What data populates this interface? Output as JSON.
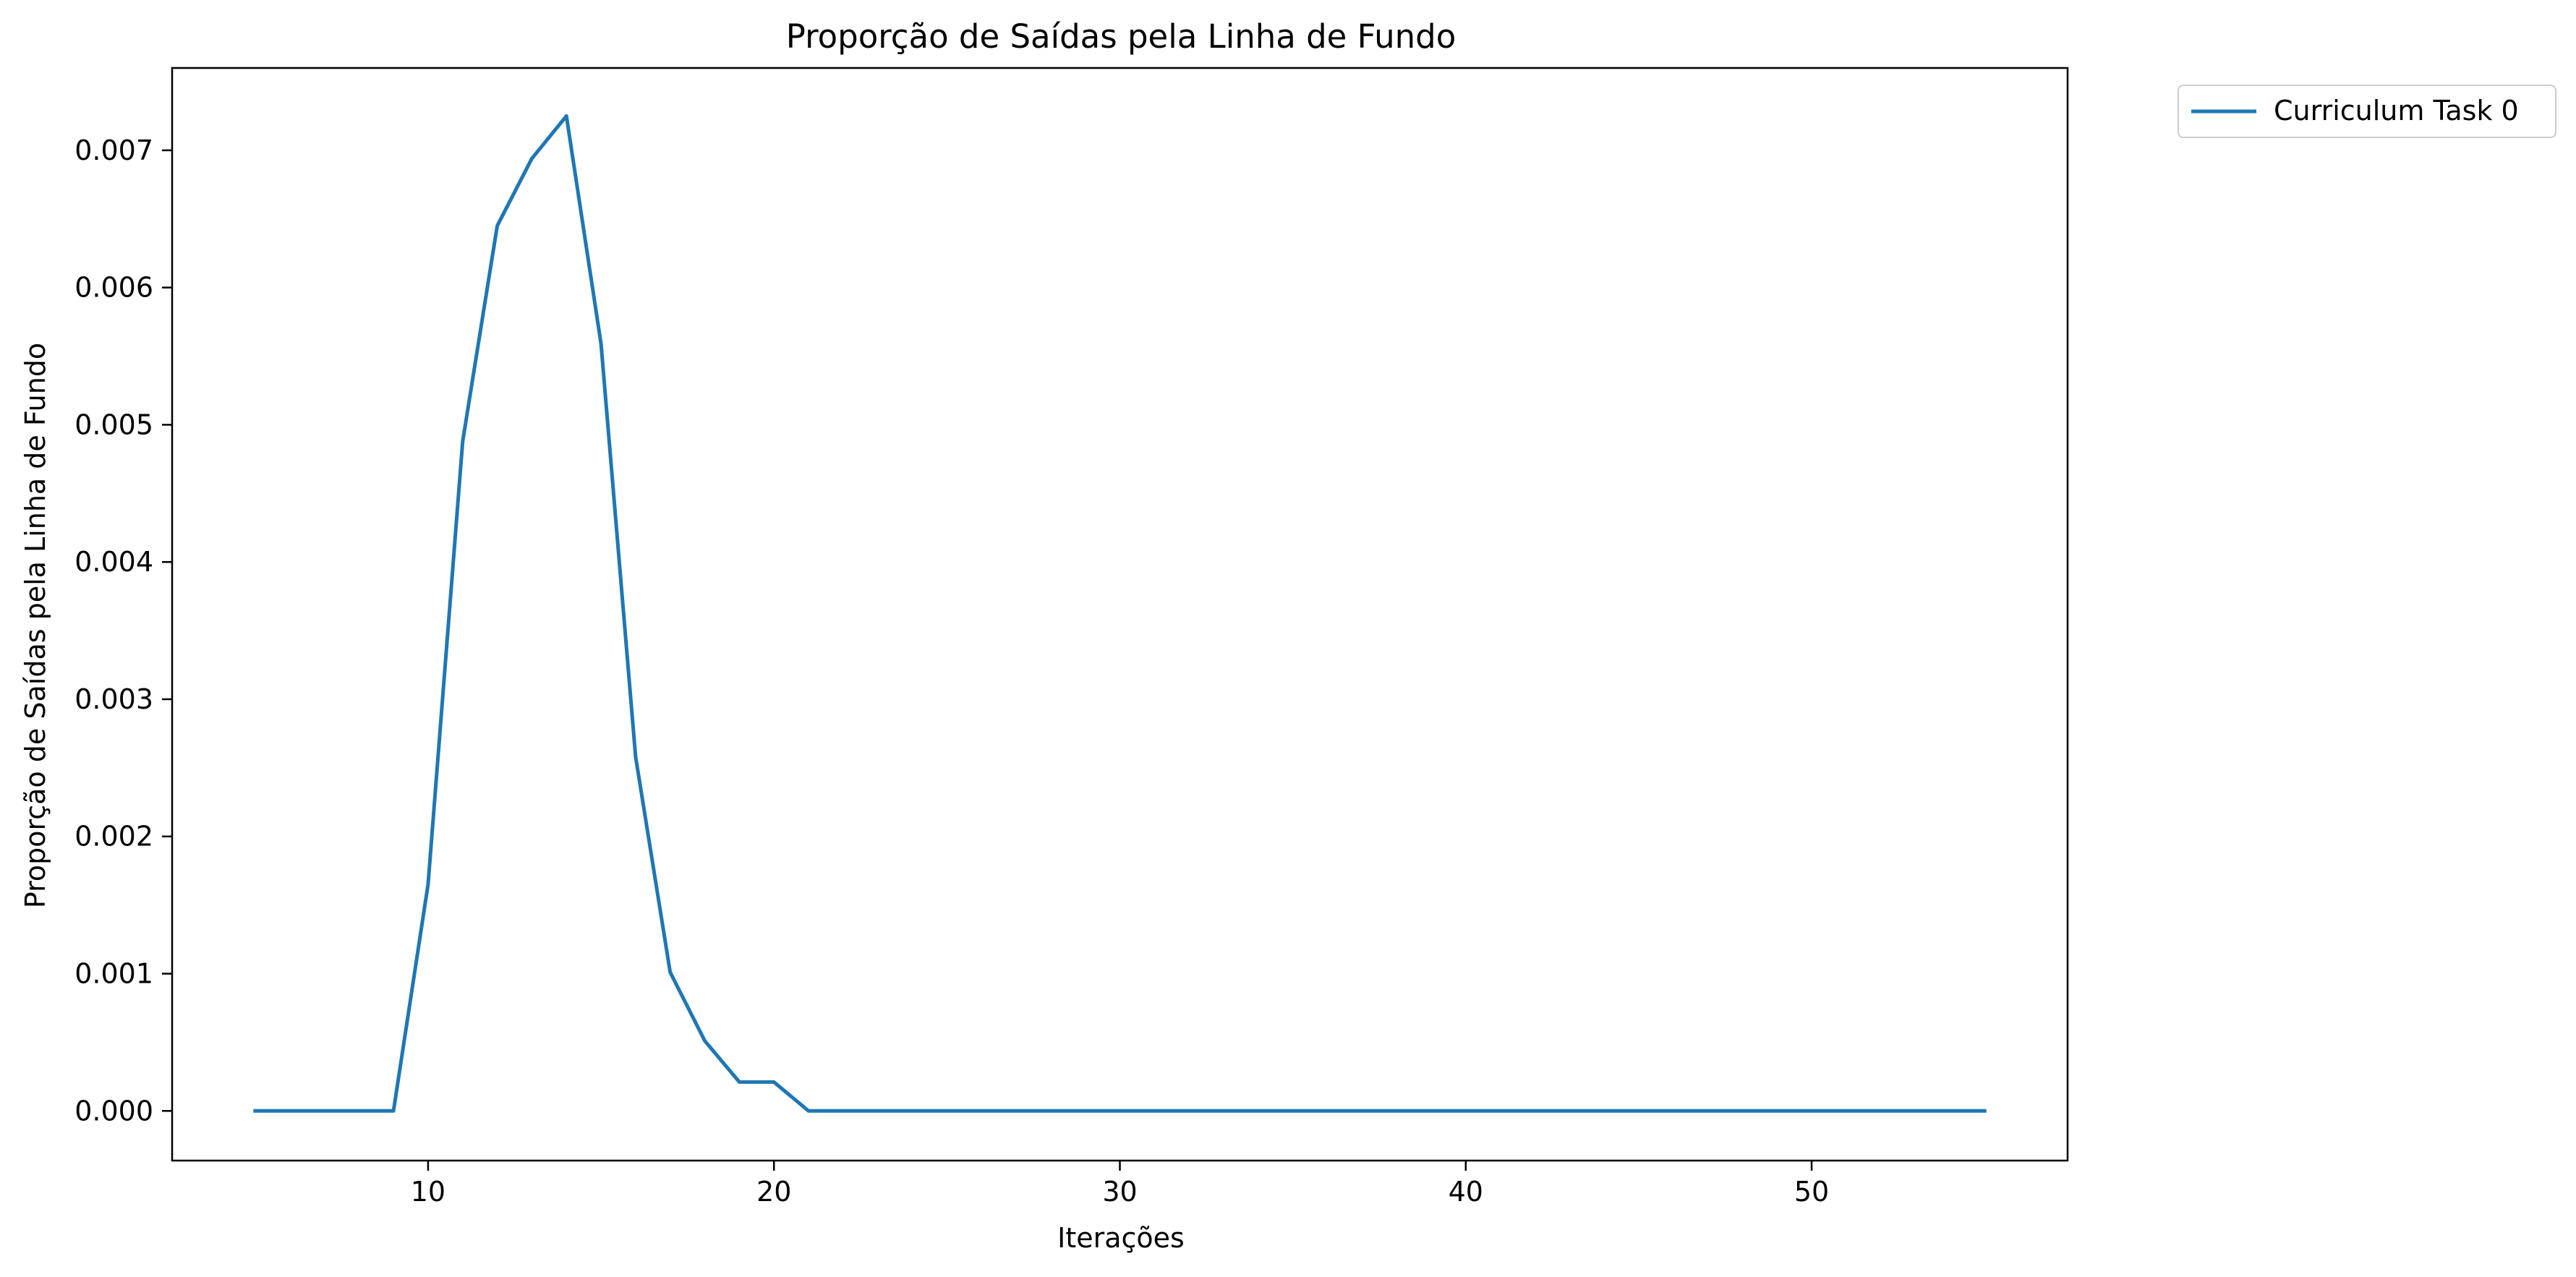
{
  "chart_data": {
    "type": "line",
    "title": "Proporção de Saídas pela Linha de Fundo",
    "xlabel": "Iterações",
    "ylabel": "Proporção de Saídas pela Linha de Fundo",
    "xlim": [
      2.6,
      57.4
    ],
    "ylim": [
      -0.000362,
      0.0076
    ],
    "xticks": [
      10,
      20,
      30,
      40,
      50
    ],
    "xtick_labels": [
      "10",
      "20",
      "30",
      "40",
      "50"
    ],
    "yticks": [
      0.0,
      0.001,
      0.002,
      0.003,
      0.004,
      0.005,
      0.006,
      0.007
    ],
    "ytick_labels": [
      "0.000",
      "0.001",
      "0.002",
      "0.003",
      "0.004",
      "0.005",
      "0.006",
      "0.007"
    ],
    "grid": false,
    "legend_position": "outside-top-right",
    "series": [
      {
        "name": "Curriculum Task 0",
        "color": "#1f77b4",
        "x": [
          5,
          6,
          7,
          8,
          9,
          10,
          11,
          12,
          13,
          14,
          15,
          16,
          17,
          18,
          19,
          20,
          21,
          22,
          23,
          24,
          25,
          26,
          27,
          28,
          29,
          30,
          31,
          32,
          33,
          34,
          35,
          36,
          37,
          38,
          39,
          40,
          41,
          42,
          43,
          44,
          45,
          46,
          47,
          48,
          49,
          50,
          51,
          52,
          53,
          54,
          55
        ],
        "y": [
          0,
          0,
          0,
          0,
          0,
          0.00165,
          0.00488,
          0.00645,
          0.00694,
          0.00725,
          0.00559,
          0.00258,
          0.00101,
          0.00051,
          0.00021,
          0.00021,
          0,
          0,
          0,
          0,
          0,
          0,
          0,
          0,
          0,
          0,
          0,
          0,
          0,
          0,
          0,
          0,
          0,
          0,
          0,
          0,
          0,
          0,
          0,
          0,
          0,
          0,
          0,
          0,
          0,
          0,
          0,
          0,
          0,
          0,
          0
        ]
      }
    ]
  }
}
